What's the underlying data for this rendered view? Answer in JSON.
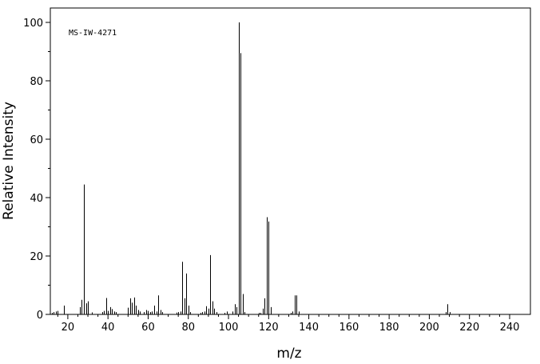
{
  "chart_data": {
    "type": "bar",
    "title": "",
    "annotation": "MS-IW-4271",
    "xlabel": "m/z",
    "ylabel": "Relative Intensity",
    "xlim": [
      10,
      245
    ],
    "ylim": [
      0,
      100
    ],
    "grid": false,
    "x_major_ticks": [
      20,
      40,
      60,
      80,
      100,
      120,
      140,
      160,
      180,
      200,
      220,
      240
    ],
    "y_major_ticks": [
      0,
      20,
      40,
      60,
      80,
      100
    ],
    "tick_labels_x": [
      "20",
      "40",
      "60",
      "80",
      "100",
      "120",
      "140",
      "160",
      "180",
      "200",
      "220",
      "240"
    ],
    "tick_labels_y": [
      "0",
      "20",
      "40",
      "60",
      "80",
      "100"
    ],
    "peaks": [
      {
        "mz": 12,
        "i": 0.5
      },
      {
        "mz": 13,
        "i": 0.8
      },
      {
        "mz": 14,
        "i": 1.0
      },
      {
        "mz": 15,
        "i": 1.2
      },
      {
        "mz": 18,
        "i": 3.0
      },
      {
        "mz": 26,
        "i": 2.5
      },
      {
        "mz": 27,
        "i": 5.0
      },
      {
        "mz": 28,
        "i": 44.5
      },
      {
        "mz": 29,
        "i": 3.8
      },
      {
        "mz": 30,
        "i": 4.5
      },
      {
        "mz": 32,
        "i": 0.7
      },
      {
        "mz": 37,
        "i": 0.8
      },
      {
        "mz": 38,
        "i": 1.2
      },
      {
        "mz": 39,
        "i": 5.6
      },
      {
        "mz": 40,
        "i": 1.2
      },
      {
        "mz": 41,
        "i": 2.5
      },
      {
        "mz": 42,
        "i": 1.8
      },
      {
        "mz": 43,
        "i": 1.0
      },
      {
        "mz": 44,
        "i": 0.8
      },
      {
        "mz": 50,
        "i": 2.3
      },
      {
        "mz": 51,
        "i": 5.5
      },
      {
        "mz": 52,
        "i": 4.0
      },
      {
        "mz": 53,
        "i": 5.8
      },
      {
        "mz": 54,
        "i": 3.0
      },
      {
        "mz": 55,
        "i": 1.5
      },
      {
        "mz": 56,
        "i": 1.0
      },
      {
        "mz": 58,
        "i": 0.8
      },
      {
        "mz": 59,
        "i": 1.5
      },
      {
        "mz": 60,
        "i": 1.2
      },
      {
        "mz": 61,
        "i": 0.8
      },
      {
        "mz": 62,
        "i": 1.0
      },
      {
        "mz": 63,
        "i": 3.0
      },
      {
        "mz": 64,
        "i": 1.0
      },
      {
        "mz": 65,
        "i": 6.5
      },
      {
        "mz": 66,
        "i": 1.5
      },
      {
        "mz": 67,
        "i": 0.8
      },
      {
        "mz": 74,
        "i": 0.6
      },
      {
        "mz": 75,
        "i": 0.8
      },
      {
        "mz": 76,
        "i": 1.0
      },
      {
        "mz": 77,
        "i": 18.0
      },
      {
        "mz": 78,
        "i": 5.5
      },
      {
        "mz": 79,
        "i": 14.0
      },
      {
        "mz": 80,
        "i": 3.0
      },
      {
        "mz": 81,
        "i": 0.8
      },
      {
        "mz": 86,
        "i": 0.5
      },
      {
        "mz": 87,
        "i": 0.8
      },
      {
        "mz": 88,
        "i": 1.0
      },
      {
        "mz": 89,
        "i": 2.8
      },
      {
        "mz": 90,
        "i": 2.0
      },
      {
        "mz": 91,
        "i": 20.3
      },
      {
        "mz": 92,
        "i": 4.5
      },
      {
        "mz": 93,
        "i": 2.0
      },
      {
        "mz": 94,
        "i": 0.8
      },
      {
        "mz": 98,
        "i": 0.5
      },
      {
        "mz": 99,
        "i": 1.0
      },
      {
        "mz": 102,
        "i": 1.0
      },
      {
        "mz": 103,
        "i": 3.5
      },
      {
        "mz": 104,
        "i": 2.5
      },
      {
        "mz": 105,
        "i": 100.0
      },
      {
        "mz": 106,
        "i": 89.5
      },
      {
        "mz": 107,
        "i": 7.0
      },
      {
        "mz": 108,
        "i": 0.8
      },
      {
        "mz": 115,
        "i": 0.5
      },
      {
        "mz": 116,
        "i": 0.5
      },
      {
        "mz": 117,
        "i": 2.0
      },
      {
        "mz": 118,
        "i": 5.5
      },
      {
        "mz": 119,
        "i": 33.3
      },
      {
        "mz": 120,
        "i": 31.8
      },
      {
        "mz": 121,
        "i": 2.5
      },
      {
        "mz": 131,
        "i": 0.5
      },
      {
        "mz": 132,
        "i": 1.0
      },
      {
        "mz": 133,
        "i": 6.5
      },
      {
        "mz": 134,
        "i": 6.5
      },
      {
        "mz": 135,
        "i": 1.0
      },
      {
        "mz": 208,
        "i": 0.8
      },
      {
        "mz": 209,
        "i": 3.5
      },
      {
        "mz": 210,
        "i": 0.8
      }
    ]
  }
}
